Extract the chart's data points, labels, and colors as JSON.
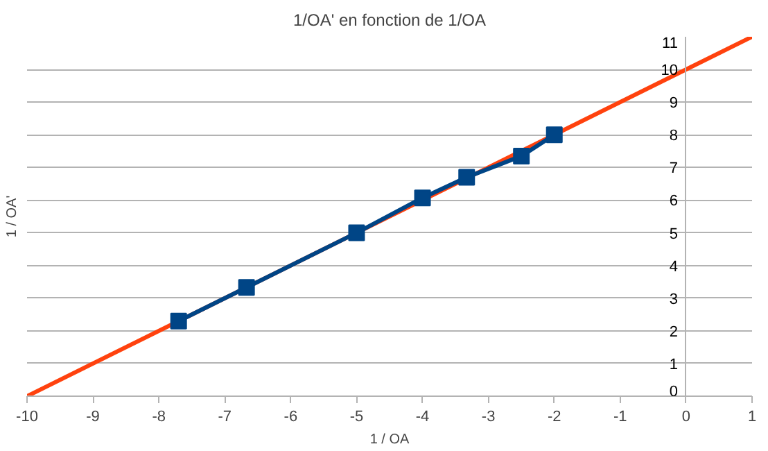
{
  "chart_data": {
    "type": "line",
    "title": "1/OA' en fonction de 1/OA",
    "xlabel": "1 / OA",
    "ylabel": "1 / OA'",
    "x": [
      -7.7,
      -6.67,
      -5,
      -4,
      -3.33,
      -2.5,
      -2
    ],
    "series": [
      {
        "color": "#ff420e",
        "x": [
          -10,
          1
        ],
        "values": [
          0,
          11
        ],
        "marker": "none"
      },
      {
        "color": "#004586",
        "values": [
          2.3,
          3.33,
          5,
          6.07,
          6.7,
          7.35,
          8
        ],
        "marker": "square"
      }
    ],
    "xlim": [
      -10,
      1
    ],
    "ylim": [
      0,
      11
    ],
    "xticks": [
      -10,
      -9,
      -8,
      -7,
      -6,
      -5,
      -4,
      -3,
      -2,
      -1,
      0,
      1
    ],
    "yticks": [
      0,
      1,
      2,
      3,
      4,
      5,
      6,
      7,
      8,
      9,
      10,
      11
    ],
    "grid": "y",
    "line_style": "solid"
  }
}
